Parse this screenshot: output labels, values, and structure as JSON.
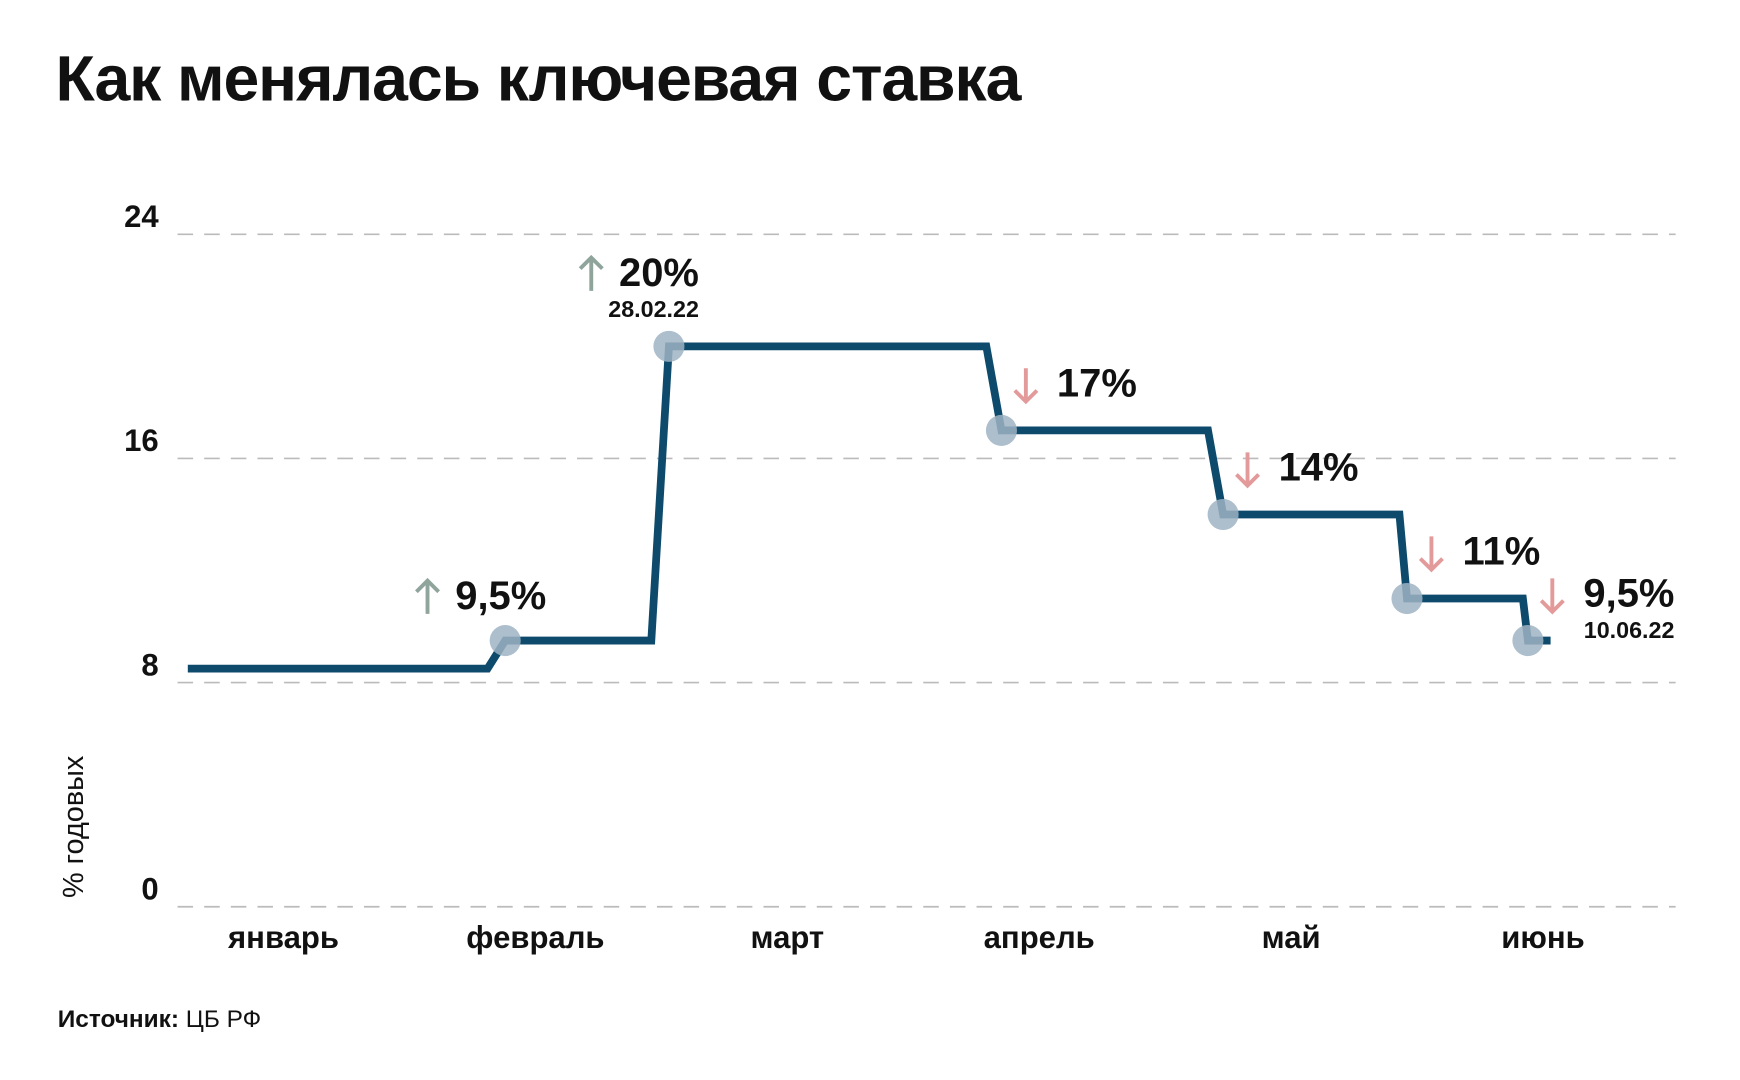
{
  "chart_data": {
    "type": "step",
    "title": "Как менялась ключевая ставка",
    "y_label": "% годовых",
    "categories": [
      "январь",
      "февраль",
      "март",
      "апрель",
      "май",
      "июнь"
    ],
    "xlim": [
      0,
      6
    ],
    "ylim": [
      0,
      24
    ],
    "yticks": [
      0,
      8,
      16,
      24
    ],
    "grid": true,
    "series": [
      {
        "color": "#0d4a6b",
        "x": [
          0.12,
          1.31,
          1.38,
          1.96,
          2.03,
          3.29,
          3.35,
          4.17,
          4.23,
          4.93,
          4.96,
          5.42,
          5.44,
          5.53
        ],
        "values": [
          8.5,
          8.5,
          9.5,
          9.5,
          20,
          20,
          17,
          17,
          14,
          14,
          11,
          11,
          9.5,
          9.5
        ]
      }
    ],
    "annotations": [
      {
        "x": 1.38,
        "y": 9.5,
        "label": "9,5%"
      },
      {
        "x": 2.03,
        "y": 20,
        "label": "20%",
        "date": "28.02.22"
      },
      {
        "x": 3.35,
        "y": 17,
        "label": "17%"
      },
      {
        "x": 4.23,
        "y": 14,
        "label": "14%"
      },
      {
        "x": 4.96,
        "y": 11,
        "label": "11%"
      },
      {
        "x": 5.44,
        "y": 9.5,
        "label": "9,5%",
        "date": "10.06.22"
      }
    ],
    "up_color": "#8fa59c",
    "down_color": "#e39a9a",
    "marker_color": "#9fb3c3",
    "source_label": "Источник:",
    "source": "ЦБ РФ"
  }
}
